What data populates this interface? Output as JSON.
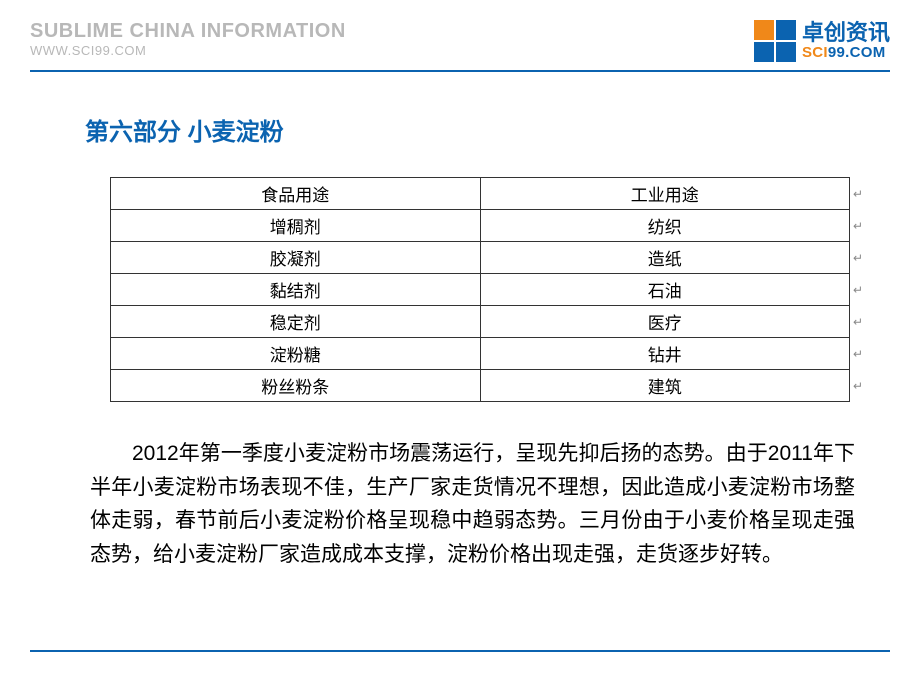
{
  "header": {
    "company_en": "SUBLIME CHINA INFORMATION",
    "company_url": "WWW.SCI99.COM",
    "logo_cn": "卓创资讯",
    "logo_en_orange": "SCI",
    "logo_en_blue": "99.COM"
  },
  "colors": {
    "brand_blue": "#0b63b0",
    "brand_orange": "#f08819",
    "subtitle_gray": "#b8b8b8",
    "table_border": "#333333",
    "text": "#000000"
  },
  "section": {
    "title": "第六部分 小麦淀粉"
  },
  "table": {
    "columns": [
      "食品用途",
      "工业用途"
    ],
    "rows": [
      [
        "增稠剂",
        "纺织"
      ],
      [
        "胶凝剂",
        "造纸"
      ],
      [
        "黏结剂",
        "石油"
      ],
      [
        "稳定剂",
        "医疗"
      ],
      [
        "淀粉糖",
        "钻井"
      ],
      [
        "粉丝粉条",
        "建筑"
      ]
    ],
    "cell_fontsize": 17,
    "border_color": "#333333"
  },
  "paragraph": {
    "text": "2012年第一季度小麦淀粉市场震荡运行，呈现先抑后扬的态势。由于2011年下半年小麦淀粉市场表现不佳，生产厂家走货情况不理想，因此造成小麦淀粉市场整体走弱，春节前后小麦淀粉价格呈现稳中趋弱态势。三月份由于小麦价格呈现走强态势，给小麦淀粉厂家造成成本支撑，淀粉价格出现走强，走货逐步好转。",
    "fontsize": 21,
    "line_height": 1.6
  }
}
